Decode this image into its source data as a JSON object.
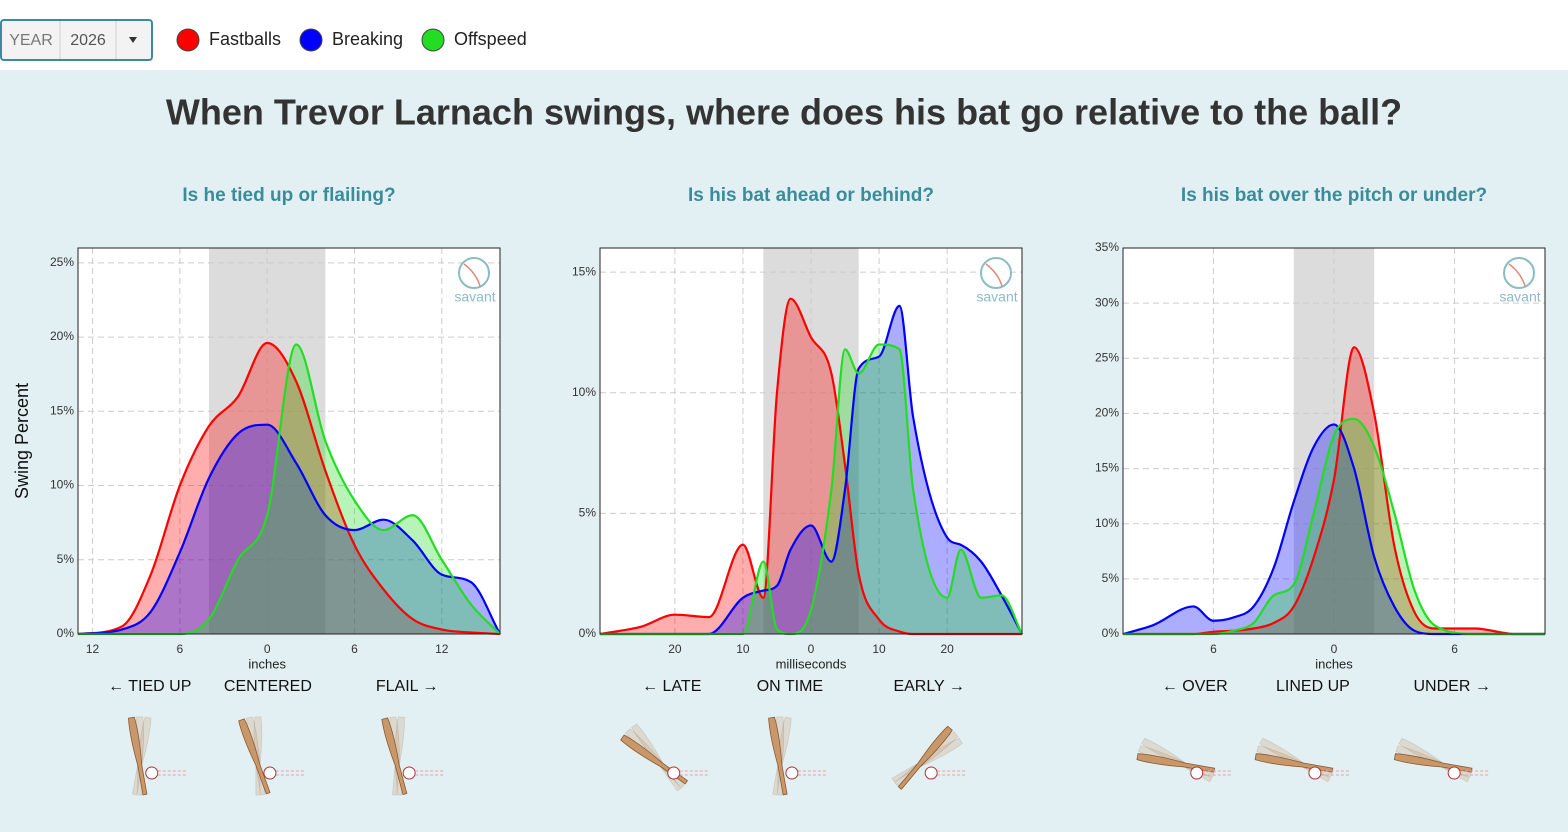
{
  "controls": {
    "year_label": "YEAR",
    "year": "2026"
  },
  "title": "When Trevor Larnach swings, where does his bat go relative to the ball?",
  "chart_data": [
    {
      "type": "area",
      "subtitle": "Is he tied up or flailing?",
      "y_label": "Swing Percent",
      "x_label": "inches",
      "directions": [
        "← TIED UP",
        "CENTERED",
        "FLAIL →"
      ],
      "logo": "savant",
      "grid": true,
      "shaded_range": [
        -4,
        4
      ],
      "xlim": [
        -13,
        16
      ],
      "xticks": [
        {
          "value": -12,
          "label": "12"
        },
        {
          "value": -6,
          "label": "6"
        },
        0,
        6,
        12
      ],
      "ylim": [
        0,
        26
      ],
      "yticks": [
        {
          "value": 0,
          "label": "0%"
        },
        {
          "value": 5,
          "label": "5%"
        },
        {
          "value": 10,
          "label": "10%"
        },
        {
          "value": 15,
          "label": "15%"
        },
        {
          "value": 20,
          "label": "20%"
        },
        {
          "value": 25,
          "label": "25%"
        }
      ],
      "x": [
        -13,
        -10,
        -8,
        -6,
        -4,
        -2,
        0,
        2,
        4,
        6,
        8,
        10,
        12,
        14,
        16
      ],
      "series": [
        {
          "name": "Fastballs",
          "color": "#ff0000",
          "values": [
            0,
            0.5,
            4,
            10,
            14,
            16,
            19.6,
            17,
            11,
            6,
            3,
            1,
            0.3,
            0.1,
            0
          ]
        },
        {
          "name": "Breaking",
          "color": "#0000ff",
          "values": [
            0,
            0.3,
            1.5,
            5.5,
            10.5,
            13.5,
            14.1,
            11.5,
            8,
            7,
            7.7,
            6.3,
            4,
            3.5,
            0
          ]
        },
        {
          "name": "Offspeed",
          "color": "#22dd22",
          "values": [
            0,
            0,
            0,
            0,
            1,
            5,
            8,
            19.5,
            13,
            9,
            7,
            8,
            5,
            2,
            0
          ]
        }
      ]
    },
    {
      "type": "area",
      "subtitle": "Is his bat ahead or behind?",
      "x_label": "milliseconds",
      "directions": [
        "← LATE",
        "ON TIME",
        "EARLY →"
      ],
      "logo": "savant",
      "grid": true,
      "shaded_range": [
        -7,
        7
      ],
      "xlim": [
        -31,
        31
      ],
      "xticks": [
        {
          "value": -20,
          "label": "20"
        },
        {
          "value": -10,
          "label": "10"
        },
        0,
        10,
        20
      ],
      "ylim": [
        0,
        16
      ],
      "yticks": [
        {
          "value": 0,
          "label": "0%"
        },
        {
          "value": 5,
          "label": "5%"
        },
        {
          "value": 10,
          "label": "10%"
        },
        {
          "value": 15,
          "label": "15%"
        }
      ],
      "x": [
        -31,
        -25,
        -20,
        -15,
        -10,
        -7,
        -5,
        -3,
        0,
        3,
        5,
        7,
        10,
        13,
        15,
        20,
        22,
        25,
        28,
        31
      ],
      "series": [
        {
          "name": "Fastballs",
          "color": "#ff0000",
          "values": [
            0,
            0.3,
            0.8,
            0.7,
            3.7,
            1.5,
            10,
            13.9,
            12.3,
            10.8,
            7,
            2.5,
            0.6,
            0.1,
            0,
            0,
            0,
            0,
            0,
            0
          ]
        },
        {
          "name": "Breaking",
          "color": "#0000ff",
          "values": [
            0,
            0,
            0,
            0,
            1.5,
            1.8,
            2,
            3.5,
            4.5,
            3,
            6,
            11,
            11.5,
            13.6,
            9,
            4,
            3.7,
            3,
            1.6,
            0
          ]
        },
        {
          "name": "Offspeed",
          "color": "#22dd22",
          "values": [
            0,
            0,
            0,
            0,
            0,
            3,
            0.2,
            0,
            1,
            6,
            11.8,
            10.8,
            12,
            11.8,
            6,
            1.5,
            3.5,
            1.5,
            1.6,
            0
          ]
        }
      ]
    },
    {
      "type": "area",
      "subtitle": "Is his bat over the pitch or under?",
      "x_label": "inches",
      "directions": [
        "← OVER",
        "LINED UP",
        "UNDER →"
      ],
      "logo": "savant",
      "grid": true,
      "shaded_range": [
        -2,
        2
      ],
      "xlim": [
        -10.5,
        10.5
      ],
      "xticks": [
        {
          "value": -6,
          "label": "6"
        },
        0,
        6
      ],
      "ylim": [
        0,
        35
      ],
      "yticks": [
        {
          "value": 0,
          "label": "0%"
        },
        {
          "value": 5,
          "label": "5%"
        },
        {
          "value": 10,
          "label": "10%"
        },
        {
          "value": 15,
          "label": "15%"
        },
        {
          "value": 20,
          "label": "20%"
        },
        {
          "value": 25,
          "label": "25%"
        },
        {
          "value": 30,
          "label": "30%"
        },
        {
          "value": 35,
          "label": "35%"
        }
      ],
      "x": [
        -10.5,
        -9,
        -7,
        -6,
        -5,
        -4,
        -3,
        -2,
        -1,
        0,
        1,
        2,
        3,
        4,
        5,
        7,
        9,
        10.5
      ],
      "series": [
        {
          "name": "Fastballs",
          "color": "#ff0000",
          "values": [
            0,
            0,
            0,
            0.2,
            0.3,
            0.5,
            1,
            2.5,
            7,
            14,
            26,
            20,
            8,
            2,
            0.5,
            0.5,
            0,
            0
          ]
        },
        {
          "name": "Breaking",
          "color": "#0000ff",
          "values": [
            0,
            0.8,
            2.5,
            1.2,
            1.5,
            2.5,
            6,
            12,
            17,
            19,
            15,
            7,
            2.5,
            0.3,
            0,
            0,
            0,
            0
          ]
        },
        {
          "name": "Offspeed",
          "color": "#22dd22",
          "values": [
            0,
            0,
            0,
            0,
            0.3,
            1,
            3.5,
            4.5,
            11,
            18,
            19.5,
            17,
            11,
            4,
            0.8,
            0,
            0,
            0
          ]
        }
      ]
    }
  ]
}
